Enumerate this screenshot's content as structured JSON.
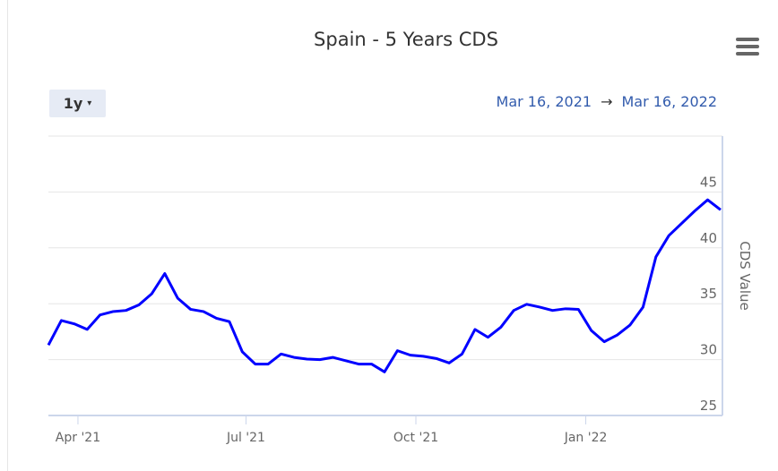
{
  "chart_data": {
    "type": "line",
    "title": "Spain - 5 Years CDS",
    "ylabel": "CDS Value",
    "xlabel": "",
    "ylim": [
      25,
      50
    ],
    "yticks": [
      25,
      30,
      35,
      40,
      45
    ],
    "ytick_labels": [
      "25",
      "30",
      "35",
      "40",
      "45"
    ],
    "xlim": [
      "2021-03-16",
      "2022-03-16"
    ],
    "xticks": [
      "2021-04-01",
      "2021-07-01",
      "2021-10-01",
      "2022-01-01"
    ],
    "xtick_labels": [
      "Apr '21",
      "Jul '21",
      "Oct '21",
      "Jan '22"
    ],
    "x_start": "2021-03-16",
    "x_step_days": 7,
    "series": [
      {
        "name": "CDS Value",
        "color": "#0000ff",
        "values": [
          31.3,
          33.5,
          33.2,
          32.7,
          34.0,
          34.3,
          34.4,
          34.9,
          35.9,
          37.7,
          35.5,
          34.5,
          34.3,
          33.7,
          33.4,
          30.7,
          29.6,
          29.6,
          30.5,
          30.2,
          30.05,
          30.0,
          30.2,
          29.9,
          29.6,
          29.6,
          28.9,
          30.8,
          30.4,
          30.3,
          30.1,
          29.7,
          30.5,
          32.7,
          32.0,
          32.9,
          34.4,
          34.95,
          34.7,
          34.4,
          34.55,
          34.5,
          32.6,
          31.6,
          32.2,
          33.1,
          34.7,
          39.2,
          41.1,
          42.2,
          43.3,
          44.3,
          43.4
        ]
      }
    ],
    "grid": true
  },
  "controls": {
    "range_label": "1y",
    "range_caret": "▾",
    "date_from": "Mar 16, 2021",
    "date_arrow": "→",
    "date_to": "Mar 16, 2022",
    "menu_icon": "hamburger-menu-icon"
  }
}
